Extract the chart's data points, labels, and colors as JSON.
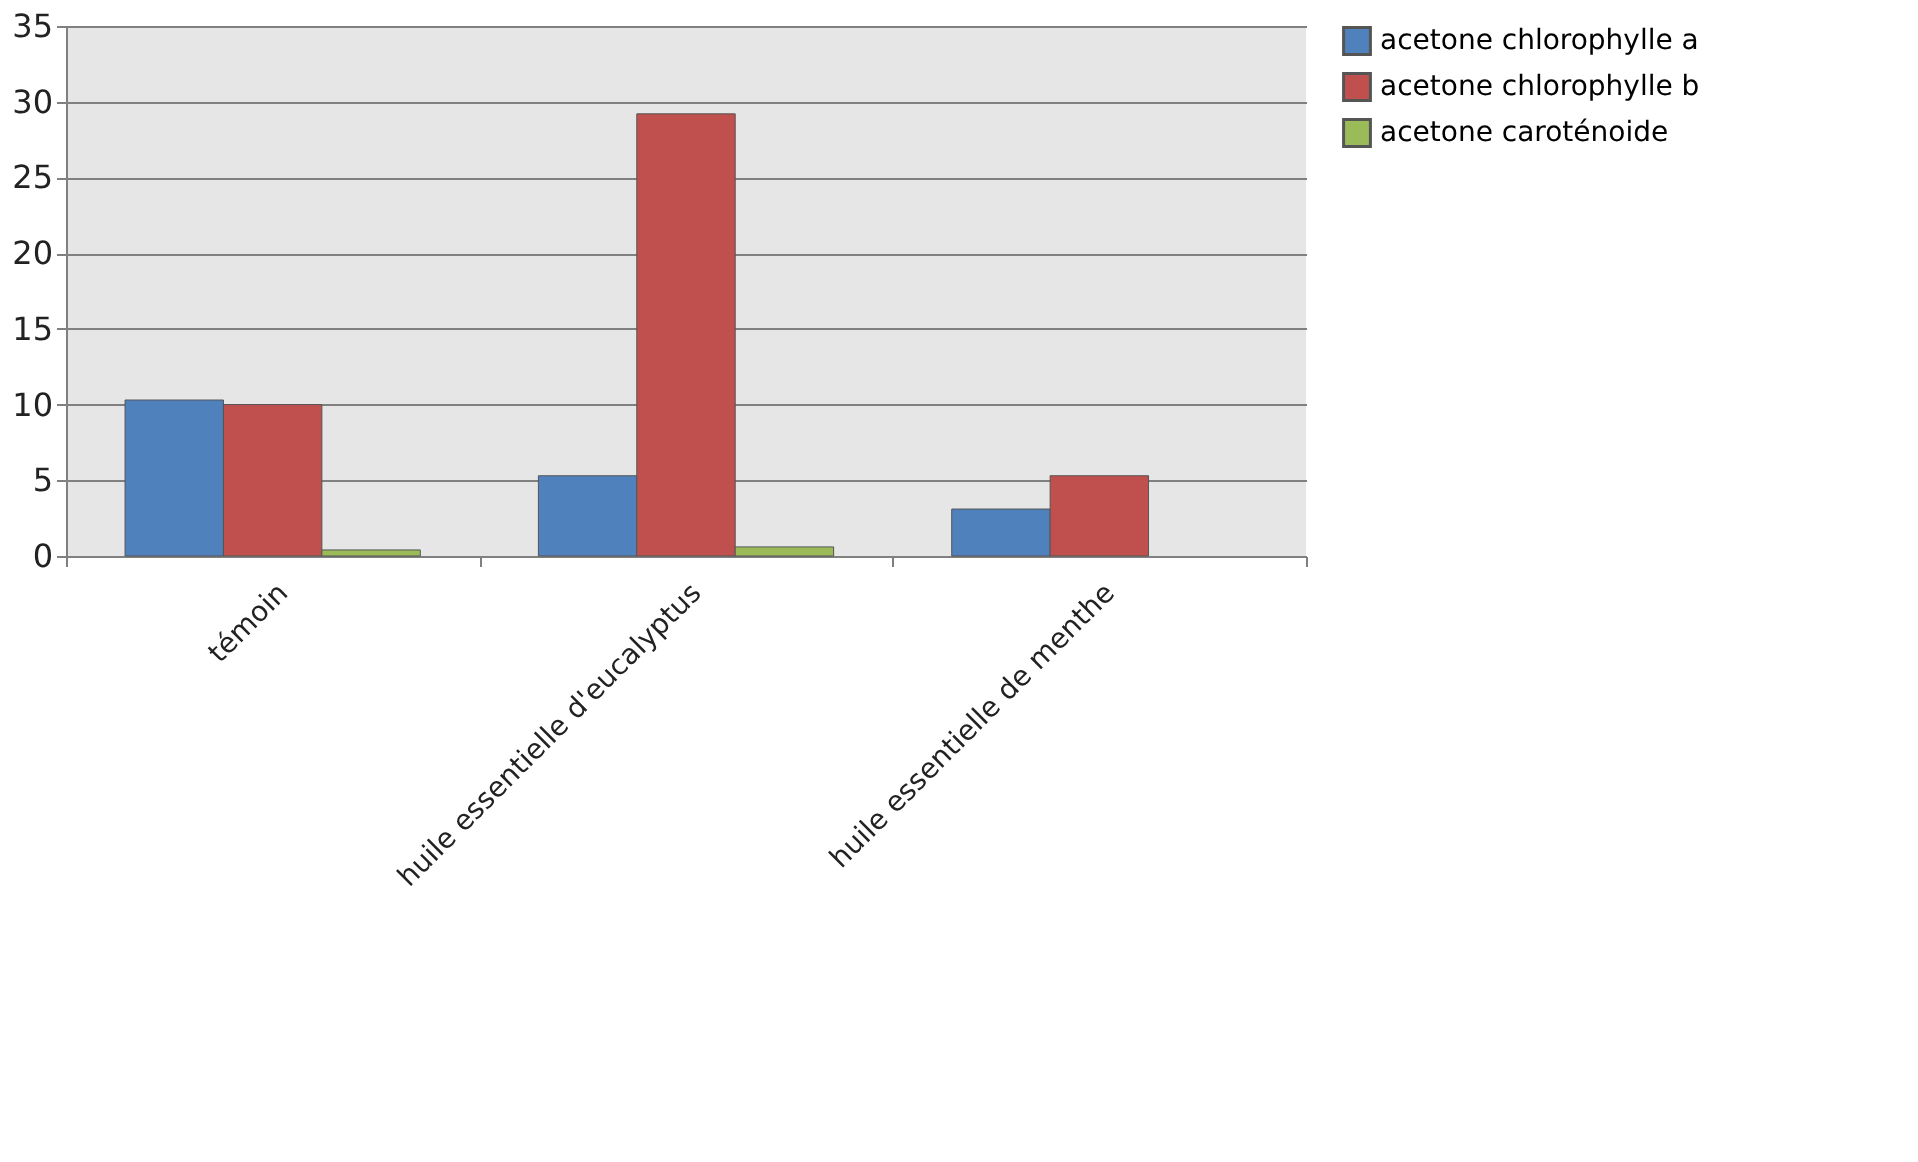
{
  "chart_data": {
    "type": "bar",
    "categories": [
      "témoin",
      "huile essentielle d'eucalyptus",
      "huile essentielle de menthe"
    ],
    "series": [
      {
        "name": "acetone chlorophylle a",
        "color": "#4f81bd",
        "values": [
          10.3,
          5.3,
          3.1
        ]
      },
      {
        "name": "acetone chlorophylle b",
        "color": "#c0504d",
        "values": [
          10.0,
          29.2,
          5.3
        ]
      },
      {
        "name": "acetone caroténoide",
        "color": "#9bbb59",
        "values": [
          0.4,
          0.6,
          null
        ]
      }
    ],
    "ylim": [
      0,
      35
    ],
    "yticks": [
      0,
      5,
      10,
      15,
      20,
      25,
      30,
      35
    ],
    "grid": "y",
    "legend": "right"
  }
}
